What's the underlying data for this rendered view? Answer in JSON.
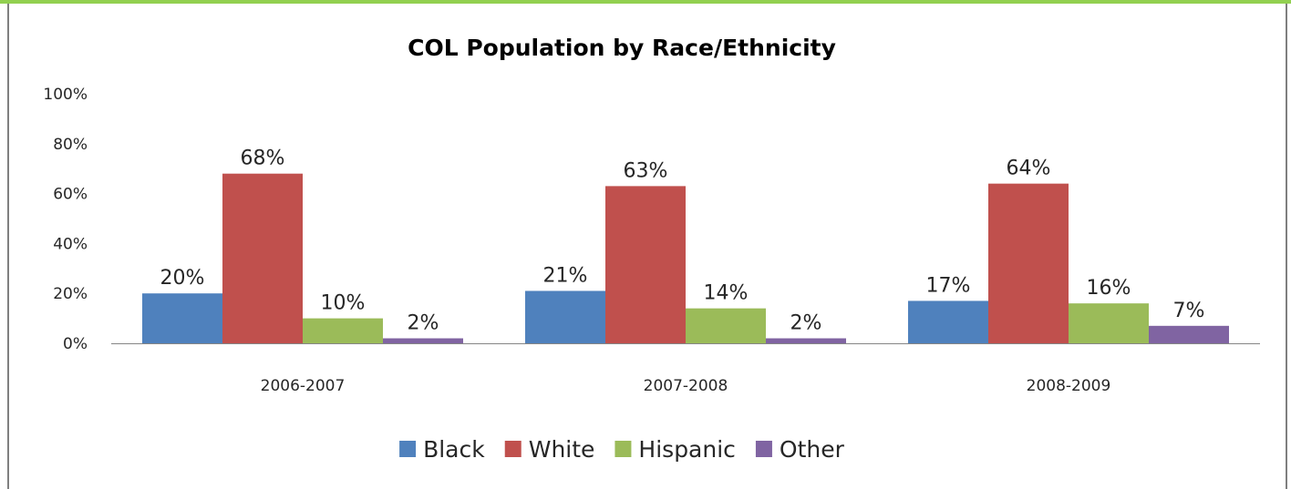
{
  "chart_data": {
    "type": "bar",
    "title": "COL Population by Race/Ethnicity",
    "categories": [
      "2006-2007",
      "2007-2008",
      "2008-2009"
    ],
    "series": [
      {
        "name": "Black",
        "values": [
          20,
          21,
          17
        ],
        "color": "#4f81bd"
      },
      {
        "name": "White",
        "values": [
          68,
          63,
          64
        ],
        "color": "#c0504d"
      },
      {
        "name": "Hispanic",
        "values": [
          10,
          14,
          16
        ],
        "color": "#9bbb59"
      },
      {
        "name": "Other",
        "values": [
          2,
          2,
          7
        ],
        "color": "#8064a2"
      }
    ],
    "ylim": [
      0,
      100
    ],
    "yticks": [
      "0%",
      "20%",
      "40%",
      "60%",
      "80%",
      "100%"
    ],
    "value_suffix": "%",
    "grid": false,
    "legend_position": "bottom"
  }
}
